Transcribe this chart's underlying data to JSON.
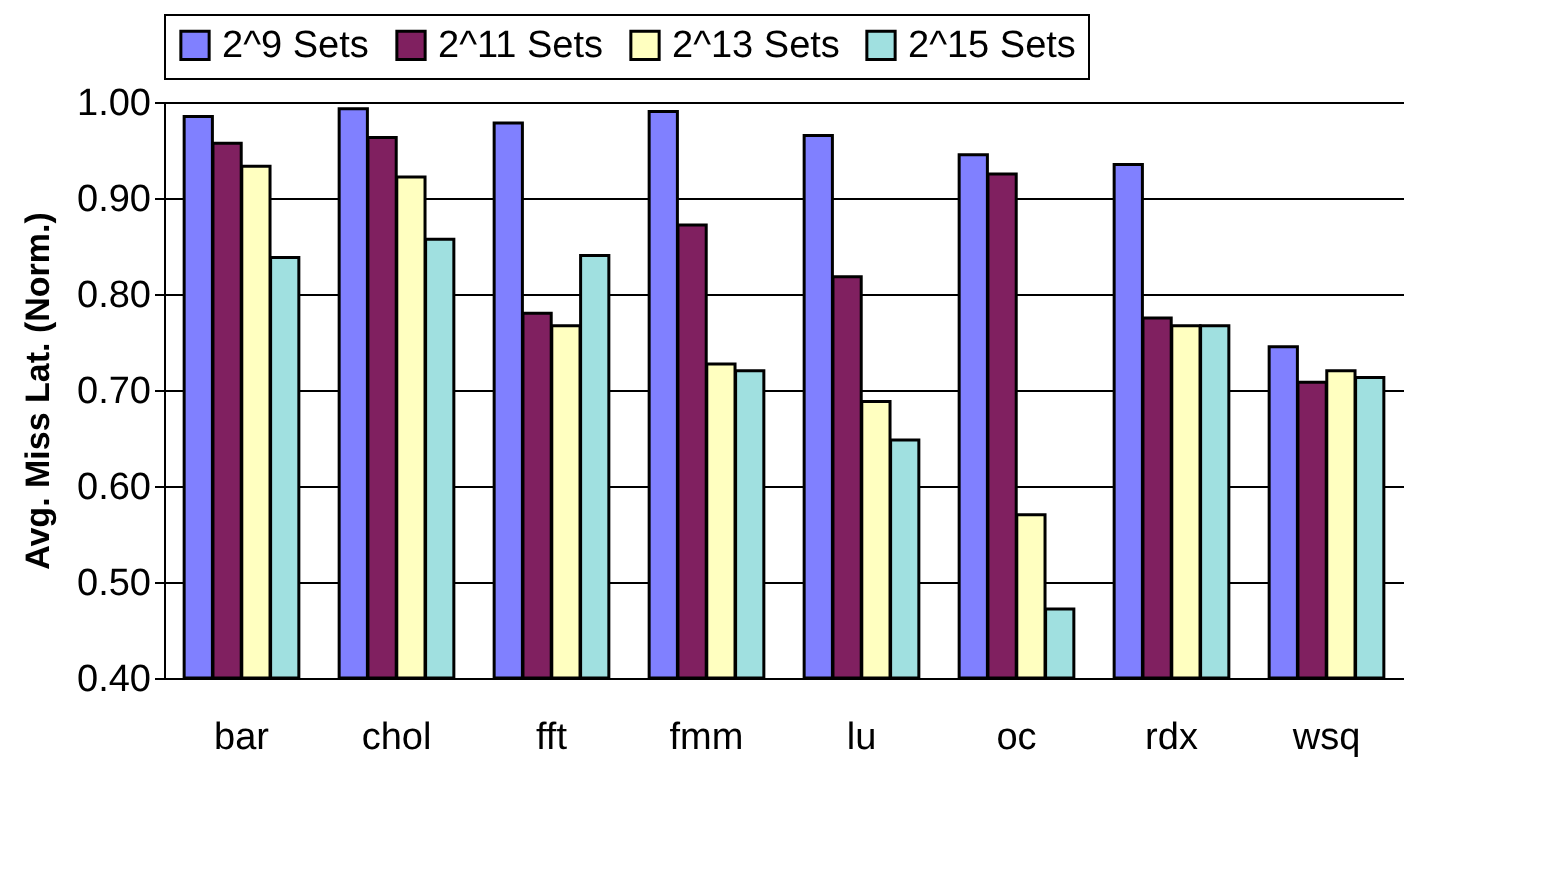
{
  "chart_data": {
    "type": "bar",
    "ylabel": "Avg. Miss Lat. (Norm.)",
    "categories": [
      "bar",
      "chol",
      "fft",
      "fmm",
      "lu",
      "oc",
      "rdx",
      "wsq"
    ],
    "series": [
      {
        "name": "2^9 Sets",
        "color": "#8080ff",
        "values": [
          0.985,
          0.993,
          0.978,
          0.99,
          0.965,
          0.945,
          0.935,
          0.745
        ]
      },
      {
        "name": "2^11 Sets",
        "color": "#802060",
        "values": [
          0.957,
          0.963,
          0.78,
          0.872,
          0.818,
          0.925,
          0.775,
          0.708
        ]
      },
      {
        "name": "2^13 Sets",
        "color": "#ffffc0",
        "values": [
          0.933,
          0.922,
          0.767,
          0.727,
          0.688,
          0.57,
          0.767,
          0.72
        ]
      },
      {
        "name": "2^15 Sets",
        "color": "#a0e0e0",
        "values": [
          0.838,
          0.857,
          0.84,
          0.72,
          0.648,
          0.472,
          0.767,
          0.713
        ]
      }
    ],
    "ylim": [
      0.4,
      1.0
    ],
    "yticks": [
      {
        "value": 0.4,
        "label": "0.40"
      },
      {
        "value": 0.5,
        "label": "0.50"
      },
      {
        "value": 0.6,
        "label": "0.60"
      },
      {
        "value": 0.7,
        "label": "0.70"
      },
      {
        "value": 0.8,
        "label": "0.80"
      },
      {
        "value": 0.9,
        "label": "0.90"
      },
      {
        "value": 1.0,
        "label": "1.00"
      }
    ],
    "grid": "y",
    "legend": "top"
  }
}
